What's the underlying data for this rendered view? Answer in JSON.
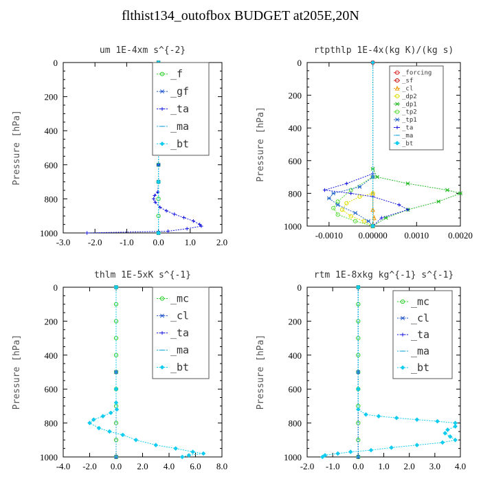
{
  "page_title": "flthist134_outofbox  BUDGET at205E,20N",
  "chart_data": [
    {
      "type": "line",
      "title": "um  1E-4xm s^{-2}",
      "ylabel": "Pressure [hPa]",
      "xlim": [
        -3.0,
        2.0
      ],
      "ylim": [
        1000,
        0
      ],
      "xticks": [
        "-3.0",
        "-2.0",
        "-1.0",
        "0.0",
        "1.0",
        "2.0"
      ],
      "yticks": [
        "0",
        "200",
        "400",
        "600",
        "800",
        "1000"
      ],
      "legend_size": "large",
      "series": [
        {
          "name": "_f",
          "color": "#22cc22",
          "marker": "circle",
          "points": [
            [
              0,
              0
            ],
            [
              0,
              100
            ],
            [
              0,
              200
            ],
            [
              0,
              300
            ],
            [
              0,
              400
            ],
            [
              0,
              500
            ],
            [
              0,
              600
            ],
            [
              0,
              700
            ],
            [
              0,
              800
            ],
            [
              0,
              900
            ],
            [
              0,
              1000
            ]
          ]
        },
        {
          "name": "_gf",
          "color": "#2255cc",
          "marker": "star",
          "points": [
            [
              0,
              0
            ],
            [
              0,
              200
            ],
            [
              0,
              400
            ],
            [
              0,
              600
            ],
            [
              0,
              700
            ],
            [
              0,
              1000
            ]
          ]
        },
        {
          "name": "_ta",
          "color": "#1111dd",
          "marker": "plus",
          "points": [
            [
              0,
              0
            ],
            [
              0,
              200
            ],
            [
              0,
              400
            ],
            [
              0,
              600
            ],
            [
              0,
              700
            ],
            [
              -0.02,
              760
            ],
            [
              -0.12,
              780
            ],
            [
              -0.15,
              800
            ],
            [
              -0.1,
              820
            ],
            [
              0.05,
              850
            ],
            [
              0.25,
              870
            ],
            [
              0.5,
              890
            ],
            [
              0.8,
              910
            ],
            [
              1.1,
              930
            ],
            [
              1.3,
              950
            ],
            [
              1.35,
              960
            ],
            [
              0.9,
              975
            ],
            [
              0.3,
              990
            ],
            [
              -2.25,
              1000
            ]
          ]
        },
        {
          "name": "_ma",
          "color": "#22aadd",
          "marker": "dash",
          "points": [
            [
              0,
              0
            ],
            [
              0,
              500
            ],
            [
              0,
              1000
            ]
          ]
        },
        {
          "name": "_bt",
          "color": "#11ccee",
          "marker": "diamond",
          "points": [
            [
              0,
              0
            ],
            [
              0,
              500
            ],
            [
              0,
              700
            ],
            [
              0,
              1000
            ]
          ]
        }
      ]
    },
    {
      "type": "line",
      "title": "rtpthlp  1E-4x(kg K)/(kg s)",
      "ylabel": "Pressure [hPa]",
      "xlim": [
        -0.0015,
        0.002
      ],
      "ylim": [
        1000,
        0
      ],
      "xticks": [
        "-0.0010",
        "0.00000",
        "0.0010",
        "0.0020"
      ],
      "xtick_values": [
        -0.001,
        0.0,
        0.001,
        0.002
      ],
      "yticks": [
        "0",
        "200",
        "400",
        "600",
        "800",
        "1000"
      ],
      "legend_size": "small",
      "series": [
        {
          "name": "_forcing",
          "color": "#dd2222",
          "marker": "circle",
          "points": [
            [
              0,
              0
            ],
            [
              0,
              1000
            ]
          ]
        },
        {
          "name": "_sf",
          "color": "#cc1111",
          "marker": "circle",
          "points": [
            [
              0,
              0
            ],
            [
              0,
              1000
            ]
          ]
        },
        {
          "name": "_cl",
          "color": "#ee9900",
          "marker": "triangle",
          "points": [
            [
              0,
              800
            ],
            [
              0,
              900
            ],
            [
              3e-05,
              950
            ],
            [
              0,
              1000
            ]
          ]
        },
        {
          "name": "_dp2",
          "color": "#dddd00",
          "marker": "circle",
          "points": [
            [
              0,
              800
            ],
            [
              -0.0003,
              820
            ],
            [
              -0.0006,
              860
            ],
            [
              -0.0007,
              900
            ],
            [
              -0.0005,
              940
            ],
            [
              -0.0002,
              970
            ],
            [
              0,
              1000
            ]
          ]
        },
        {
          "name": "_dp1",
          "color": "#22bb22",
          "marker": "star",
          "points": [
            [
              0,
              650
            ],
            [
              0.0001,
              700
            ],
            [
              0.0008,
              740
            ],
            [
              0.0017,
              780
            ],
            [
              0.002,
              800
            ],
            [
              0.0015,
              850
            ],
            [
              0.0008,
              900
            ],
            [
              0.0003,
              950
            ],
            [
              0,
              1000
            ]
          ]
        },
        {
          "name": "_tp2",
          "color": "#55dd33",
          "marker": "circle",
          "points": [
            [
              0,
              700
            ],
            [
              -0.0005,
              780
            ],
            [
              -0.0008,
              850
            ],
            [
              -0.0009,
              890
            ],
            [
              -0.0008,
              930
            ],
            [
              -0.0004,
              970
            ],
            [
              0,
              1000
            ]
          ]
        },
        {
          "name": "_tp1",
          "color": "#2266cc",
          "marker": "star",
          "points": [
            [
              0,
              700
            ],
            [
              -0.0003,
              760
            ],
            [
              -0.0009,
              800
            ],
            [
              -0.001,
              830
            ],
            [
              -0.0008,
              870
            ],
            [
              -0.0004,
              920
            ],
            [
              -0.0001,
              970
            ],
            [
              0,
              1000
            ]
          ]
        },
        {
          "name": "_ta",
          "color": "#1111dd",
          "marker": "plus",
          "points": [
            [
              0,
              680
            ],
            [
              -0.0006,
              740
            ],
            [
              -0.0011,
              780
            ],
            [
              -0.0005,
              800
            ],
            [
              0,
              820
            ],
            [
              0.0006,
              870
            ],
            [
              0.0008,
              900
            ],
            [
              0.0002,
              950
            ],
            [
              0,
              1000
            ]
          ]
        },
        {
          "name": "_ma",
          "color": "#22aadd",
          "marker": "dash",
          "points": [
            [
              0,
              0
            ],
            [
              0,
              1000
            ]
          ]
        },
        {
          "name": "_bt",
          "color": "#11ccee",
          "marker": "diamond",
          "points": [
            [
              0,
              0
            ],
            [
              0,
              1000
            ]
          ]
        }
      ]
    },
    {
      "type": "line",
      "title": "thlm  1E-5xK s^{-1}",
      "ylabel": "Pressure [hPa]",
      "xlim": [
        -4.0,
        8.0
      ],
      "ylim": [
        1000,
        0
      ],
      "xticks": [
        "-4.0",
        "-2.0",
        "0.0",
        "2.0",
        "4.0",
        "6.0",
        "8.0"
      ],
      "yticks": [
        "0",
        "200",
        "400",
        "600",
        "800",
        "1000"
      ],
      "legend_size": "large",
      "series": [
        {
          "name": "_mc",
          "color": "#22cc22",
          "marker": "circle",
          "points": [
            [
              0,
              0
            ],
            [
              0,
              100
            ],
            [
              0,
              200
            ],
            [
              0,
              300
            ],
            [
              0,
              400
            ],
            [
              0,
              500
            ],
            [
              0,
              600
            ],
            [
              0,
              700
            ],
            [
              0,
              800
            ],
            [
              0,
              900
            ],
            [
              0,
              1000
            ]
          ]
        },
        {
          "name": "_cl",
          "color": "#2255cc",
          "marker": "star",
          "points": [
            [
              0,
              0
            ],
            [
              0,
              500
            ],
            [
              0,
              1000
            ]
          ]
        },
        {
          "name": "_ta",
          "color": "#1111dd",
          "marker": "plus",
          "points": [
            [
              0,
              0
            ],
            [
              0,
              500
            ],
            [
              0,
              1000
            ]
          ]
        },
        {
          "name": "_ma",
          "color": "#22aadd",
          "marker": "dash",
          "points": [
            [
              0,
              0
            ],
            [
              0,
              500
            ],
            [
              0,
              1000
            ]
          ]
        },
        {
          "name": "_bt",
          "color": "#11ccee",
          "marker": "diamond",
          "points": [
            [
              0,
              0
            ],
            [
              0,
              600
            ],
            [
              0,
              680
            ],
            [
              0.05,
              720
            ],
            [
              -0.4,
              740
            ],
            [
              -1.0,
              760
            ],
            [
              -1.7,
              780
            ],
            [
              -2.0,
              800
            ],
            [
              -1.3,
              830
            ],
            [
              -0.5,
              850
            ],
            [
              0.5,
              870
            ],
            [
              1.5,
              900
            ],
            [
              3.0,
              930
            ],
            [
              4.5,
              950
            ],
            [
              5.8,
              970
            ],
            [
              6.6,
              980
            ],
            [
              5.5,
              990
            ],
            [
              5.0,
              1000
            ]
          ]
        }
      ]
    },
    {
      "type": "line",
      "title": "rtm  1E-8xkg kg^{-1} s^{-1}",
      "ylabel": "Pressure [hPa]",
      "xlim": [
        -2.0,
        4.0
      ],
      "ylim": [
        1000,
        0
      ],
      "xticks": [
        "-2.0",
        "-1.0",
        "0.0",
        "1.0",
        "2.0",
        "3.0",
        "4.0"
      ],
      "yticks": [
        "0",
        "200",
        "400",
        "600",
        "800",
        "1000"
      ],
      "legend_size": "large",
      "series": [
        {
          "name": "_mc",
          "color": "#22cc22",
          "marker": "circle",
          "points": [
            [
              0,
              0
            ],
            [
              0,
              100
            ],
            [
              0,
              200
            ],
            [
              0,
              300
            ],
            [
              0,
              400
            ],
            [
              0,
              500
            ],
            [
              0,
              600
            ],
            [
              0,
              700
            ],
            [
              0,
              800
            ],
            [
              0,
              900
            ],
            [
              0,
              1000
            ]
          ]
        },
        {
          "name": "_cl",
          "color": "#2255cc",
          "marker": "star",
          "points": [
            [
              0,
              0
            ],
            [
              0,
              500
            ],
            [
              0,
              1000
            ]
          ]
        },
        {
          "name": "_ta",
          "color": "#1111dd",
          "marker": "plus",
          "points": [
            [
              0,
              0
            ],
            [
              0,
              500
            ],
            [
              0,
              1000
            ]
          ]
        },
        {
          "name": "_ma",
          "color": "#22aadd",
          "marker": "dash",
          "points": [
            [
              0,
              0
            ],
            [
              0,
              500
            ],
            [
              0,
              1000
            ]
          ]
        },
        {
          "name": "_bt",
          "color": "#11ccee",
          "marker": "diamond",
          "points": [
            [
              0,
              0
            ],
            [
              0,
              600
            ],
            [
              0,
              720
            ],
            [
              0.3,
              750
            ],
            [
              0.8,
              760
            ],
            [
              1.5,
              770
            ],
            [
              2.3,
              780
            ],
            [
              3.1,
              790
            ],
            [
              3.8,
              800
            ],
            [
              3.8,
              820
            ],
            [
              3.5,
              840
            ],
            [
              3.4,
              860
            ],
            [
              3.6,
              880
            ],
            [
              3.8,
              900
            ],
            [
              3.3,
              915
            ],
            [
              2.3,
              930
            ],
            [
              1.3,
              945
            ],
            [
              0.5,
              960
            ],
            [
              -0.3,
              970
            ],
            [
              -0.8,
              980
            ],
            [
              -1.3,
              990
            ],
            [
              -1.4,
              1000
            ]
          ]
        }
      ]
    }
  ]
}
